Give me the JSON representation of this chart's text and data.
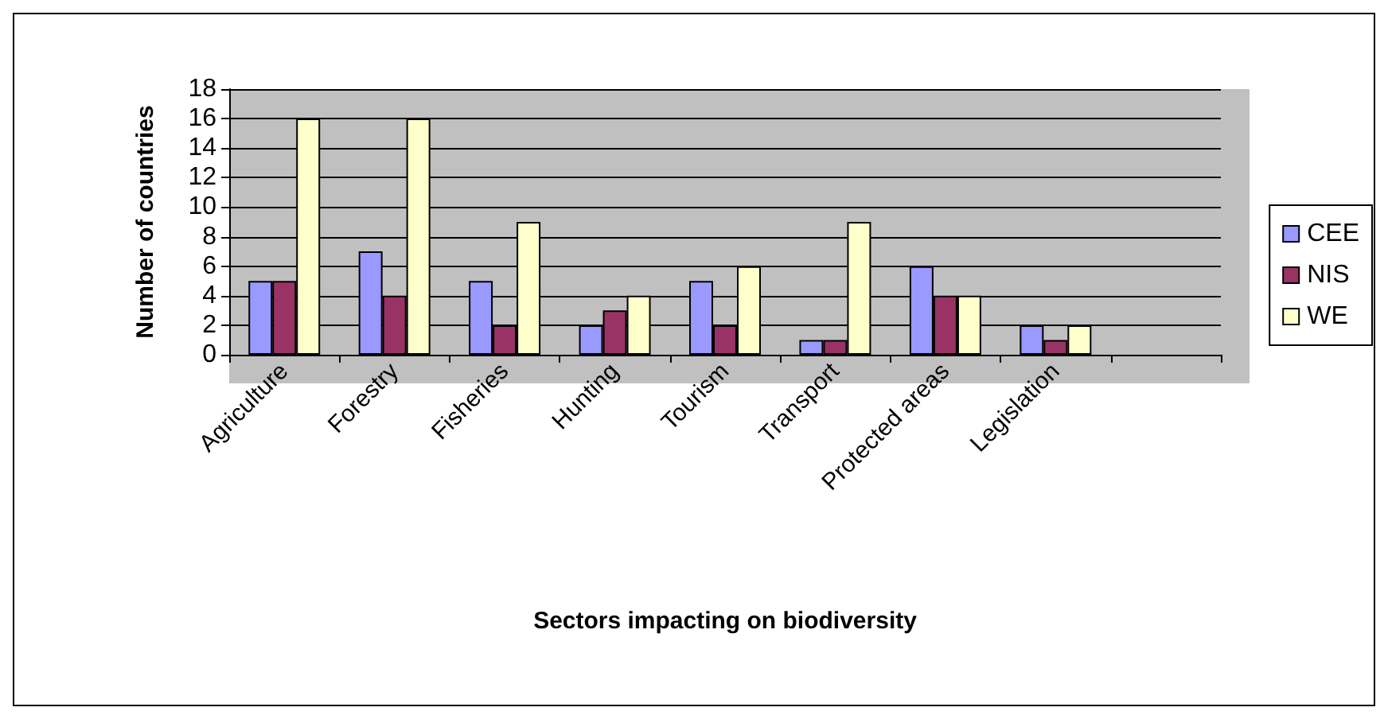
{
  "chart_data": {
    "type": "bar",
    "xlabel": "Sectors impacting on biodiversity",
    "ylabel": "Number of countries",
    "categories": [
      "Agriculture",
      "Forestry",
      "Fisheries",
      "Hunting",
      "Tourism",
      "Transport",
      "Protected areas",
      "Legislation",
      null
    ],
    "series": [
      {
        "name": "CEE",
        "color": "#9999ff",
        "values": [
          5,
          7,
          5,
          2,
          5,
          1,
          6,
          2,
          null
        ]
      },
      {
        "name": "NIS",
        "color": "#993366",
        "values": [
          5,
          4,
          2,
          3,
          2,
          1,
          4,
          1,
          null
        ]
      },
      {
        "name": "WE",
        "color": "#ffffcc",
        "values": [
          16,
          16,
          9,
          4,
          6,
          9,
          4,
          2,
          null
        ]
      }
    ],
    "ylim": [
      0,
      18
    ],
    "yticks": [
      0,
      2,
      4,
      6,
      8,
      10,
      12,
      14,
      16,
      18
    ],
    "grid": "y",
    "legend": "right"
  }
}
